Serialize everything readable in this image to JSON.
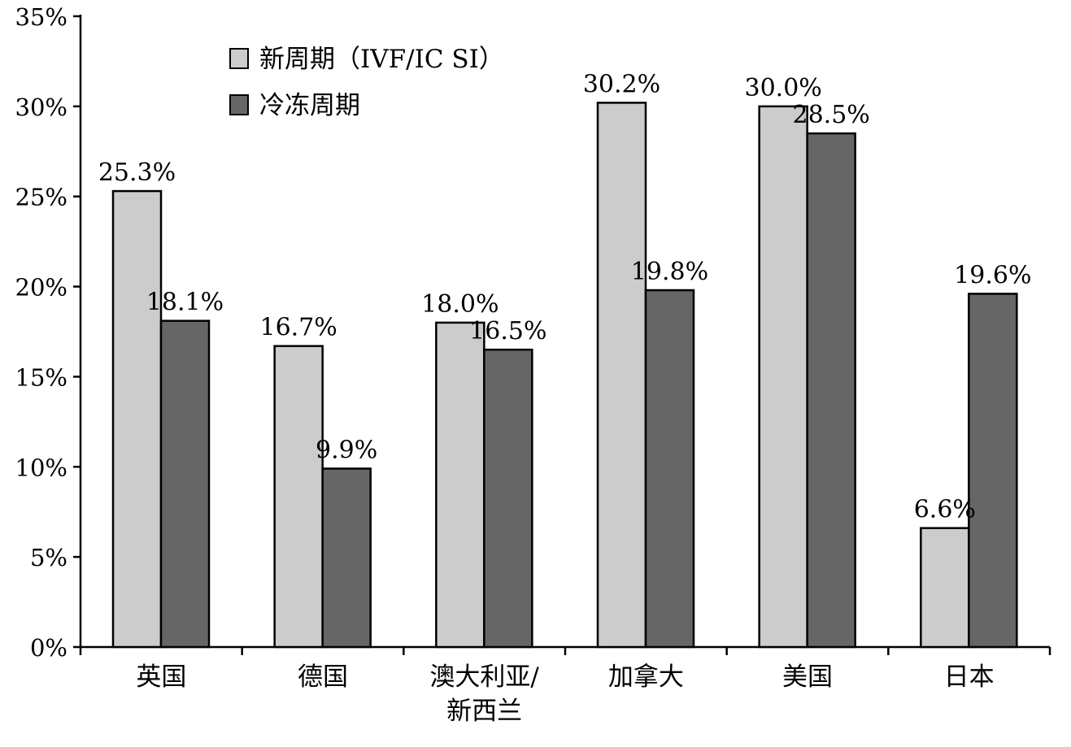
{
  "chart_data": {
    "type": "bar",
    "categories": [
      [
        "英国"
      ],
      [
        "德国"
      ],
      [
        "澳大利亚/",
        "新西兰"
      ],
      [
        "加拿大"
      ],
      [
        "美国"
      ],
      [
        "日本"
      ]
    ],
    "series": [
      {
        "name": "新周期（IVF/IC SI）",
        "color": "#cccccc",
        "values": [
          25.3,
          16.7,
          18.0,
          30.2,
          30.0,
          6.6
        ],
        "labels": [
          "25.3%",
          "16.7%",
          "18.0%",
          "30.2%",
          "30.0%",
          "6.6%"
        ]
      },
      {
        "name": "冷冻周期",
        "color": "#666666",
        "values": [
          18.1,
          9.9,
          16.5,
          19.8,
          28.5,
          19.6
        ],
        "labels": [
          "18.1%",
          "9.9%",
          "16.5%",
          "19.8%",
          "28.5%",
          "19.6%"
        ]
      }
    ],
    "ylim": [
      0,
      35
    ],
    "yticks": [
      0,
      5,
      10,
      15,
      20,
      25,
      30,
      35
    ],
    "ytick_labels": [
      "0%",
      "5%",
      "10%",
      "15%",
      "20%",
      "25%",
      "30%",
      "35%"
    ],
    "legend_position": "top-left",
    "grid": false,
    "title": "",
    "xlabel": "",
    "ylabel": ""
  }
}
